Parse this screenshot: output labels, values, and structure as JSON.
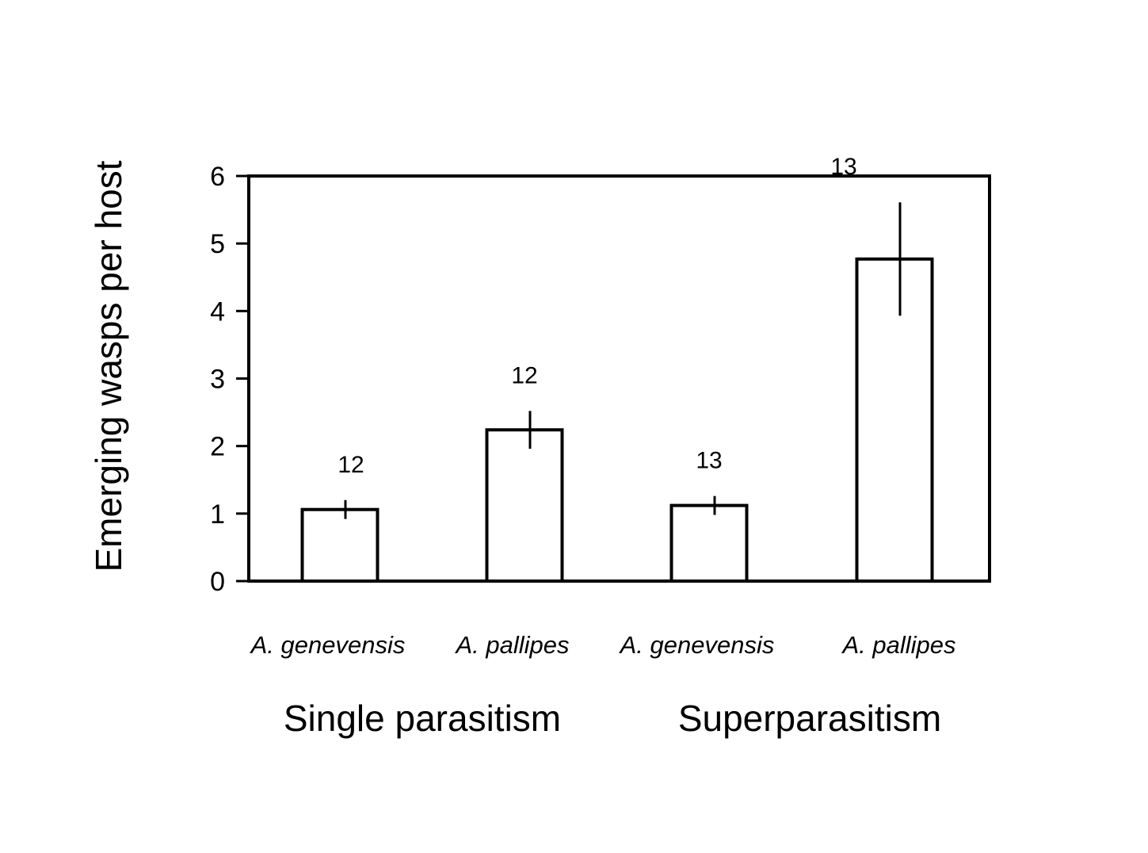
{
  "chart_data": {
    "type": "bar",
    "ylabel": "Emerging wasps per host",
    "ylim": [
      0,
      6
    ],
    "yticks": [
      "0",
      "1",
      "2",
      "3",
      "4",
      "5",
      "6"
    ],
    "categories": [
      "A. genevensis",
      "A. pallipes",
      "A. genevensis",
      "A. pallipes"
    ],
    "groups": [
      {
        "label": "Single parasitism",
        "categories": [
          0,
          1
        ]
      },
      {
        "label": "Superparasitism",
        "categories": [
          2,
          3
        ]
      }
    ],
    "series": [
      {
        "values": [
          1.06,
          2.24,
          1.12,
          4.77
        ],
        "error": [
          0.14,
          0.28,
          0.14,
          0.84
        ],
        "n_labels": [
          "12",
          "12",
          "13",
          "13"
        ]
      }
    ],
    "grid": false,
    "legend": "none",
    "bar_fill": "#ffffff",
    "stroke_color": "#000000"
  }
}
